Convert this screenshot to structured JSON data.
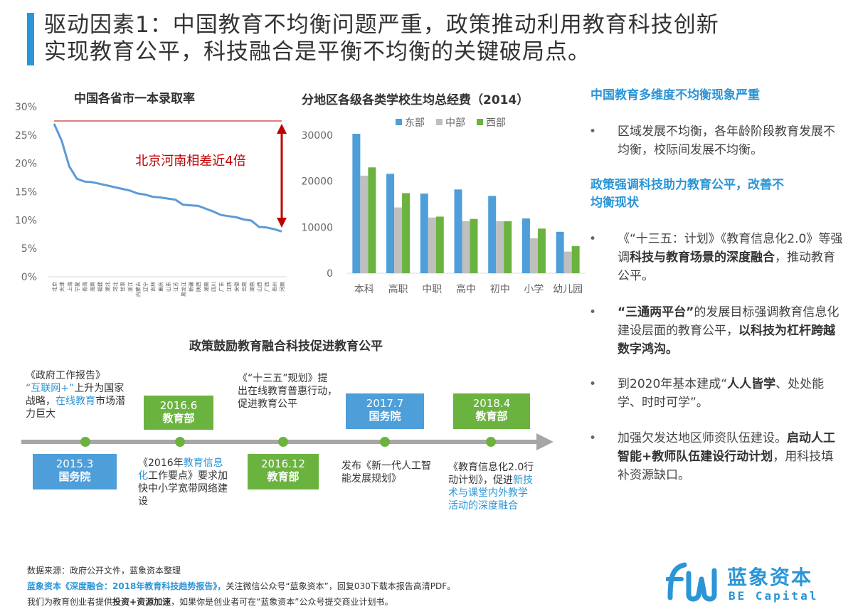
{
  "title": {
    "line1": "驱动因素1：中国教育不均衡问题严重，政策推动利用教育科技创新",
    "line2": "实现教育公平，科技融合是平衡不均衡的关键破局点。"
  },
  "chart_data": [
    {
      "type": "line",
      "title": "中国各省市一本录取率",
      "yticks": [
        "30%",
        "25%",
        "20%",
        "15%",
        "10%",
        "5%",
        "0%"
      ],
      "ylim": [
        0,
        30
      ],
      "categories": [
        "北京",
        "天津",
        "上海",
        "宁夏",
        "青海",
        "海南",
        "福建",
        "湖北",
        "河北",
        "甘肃",
        "浙江",
        "内蒙古",
        "辽宁",
        "吉林",
        "重庆",
        "山东",
        "江苏",
        "黑龙江",
        "新疆",
        "陕西",
        "湖南",
        "四川",
        "广东",
        "江西",
        "安徽",
        "云南",
        "湖南",
        "山西",
        "广西",
        "贵州",
        "河南"
      ],
      "values": [
        27.0,
        24.0,
        19.5,
        17.3,
        16.8,
        16.7,
        16.4,
        16.1,
        15.8,
        15.5,
        15.2,
        14.7,
        14.5,
        14.1,
        14.0,
        13.8,
        13.6,
        12.7,
        12.6,
        12.5,
        12.0,
        11.5,
        10.9,
        10.7,
        10.5,
        10.1,
        9.9,
        8.8,
        8.7,
        8.4,
        8.0
      ],
      "annotation": "北京河南相差近4倍",
      "grid": false
    },
    {
      "type": "bar",
      "title": "分地区各级各类学校生均总经费（2014）",
      "categories": [
        "本科",
        "高职",
        "中职",
        "高中",
        "初中",
        "小学",
        "幼儿园"
      ],
      "series": [
        {
          "name": "东部",
          "color": "#4d9ed9",
          "values": [
            30300,
            21600,
            17300,
            18200,
            16800,
            11900,
            9000
          ]
        },
        {
          "name": "中部",
          "color": "#bfbfbf",
          "values": [
            21200,
            14300,
            12100,
            11300,
            11300,
            7600,
            4700
          ]
        },
        {
          "name": "西部",
          "color": "#6bb33f",
          "values": [
            23000,
            17400,
            12300,
            11800,
            11300,
            9700,
            5900
          ]
        }
      ],
      "yticks": [
        "30000",
        "20000",
        "10000",
        "0"
      ],
      "ylim": [
        0,
        30000
      ],
      "legend": "top",
      "grid": false
    }
  ],
  "right": {
    "head1": "中国教育多维度不均衡现象严重",
    "b1": "区域发展不均衡，各年龄阶段教育发展不均衡，校际间发展不均衡。",
    "head2a": "政策强调科技助力教育公平，改善不",
    "head2b": "均衡现状",
    "b2_pre": "《“十三五：计划》《教育信息化2.0》等强调",
    "b2_bold": "科技与教育场景的深度融合",
    "b2_post": "，推动教育公平。",
    "b3_bold1": "“三通两平台”",
    "b3_mid": "的发展目标强调教育信息化建设层面的教育公平，",
    "b3_bold2": "以科技为杠杆跨越数字鸿沟。",
    "b4_pre": "到2020年基本建成“",
    "b4_bold": "人人皆学",
    "b4_post": "、处处能学、时时可学”。",
    "b5_pre": "加强欠发达地区师资队伍建设。",
    "b5_bold": "启动人工智能+教师队伍建设行动计划",
    "b5_post": "，用科技填补资源缺口。",
    "dot": "•"
  },
  "timeline": {
    "title": "政策鼓励教育融合科技促进教育公平",
    "t1_a": "《政府工作报告》",
    "t1_b": "“互联网+”",
    "t1_c": "上升为国家战略，",
    "t1_d": "在线教育",
    "t1_e": "市场潜力巨大",
    "t2_a": "《2016年",
    "t2_b": "教育信息化",
    "t2_c": "工作要点》要求加快中小学宽带网络建设",
    "t3": "《“十三五”规划》提出在线教育普惠行动，促进教育公平",
    "t4": "发布《新一代人工智能发展规划》",
    "t5_a": "《教育信息化2.0行动计划》，促进",
    "t5_b": "新技术与课堂内外教学活动的深度融合",
    "boxes": [
      {
        "date": "2015.3",
        "org": "国务院"
      },
      {
        "date": "2016.6",
        "org": "教育部"
      },
      {
        "date": "2016.12",
        "org": "教育部"
      },
      {
        "date": "2017.7",
        "org": "国务院"
      },
      {
        "date": "2018.4",
        "org": "教育部"
      }
    ]
  },
  "footer": {
    "line1": "数据来源：政府公开文件，蓝象资本整理",
    "line2_hl": "蓝象资本《深度融合：2018年教育科技趋势报告》，",
    "line2_rest": "关注微信公众号“蓝象资本”，回复030下载本报告高清PDF。",
    "line3_pre": "我们为教育创业者提供",
    "line3_bold": "投资+资源加速",
    "line3_post": "，如果你是创业者可在“蓝象资本”公众号提交商业计划书。"
  },
  "logo": {
    "cn": "蓝象资本",
    "en": "BE Capital",
    "color": "#2b95d6"
  }
}
